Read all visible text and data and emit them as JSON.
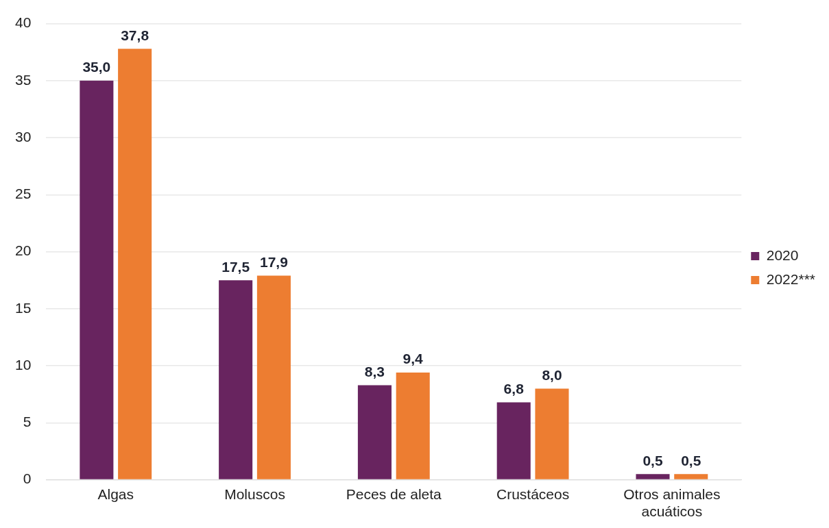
{
  "chart_data": {
    "type": "bar",
    "categories": [
      "Algas",
      "Moluscos",
      "Peces de aleta",
      "Crustáceos",
      "Otros animales acuáticos"
    ],
    "series": [
      {
        "name": "2020",
        "color": "#68245f",
        "values": [
          35.0,
          17.5,
          8.3,
          6.8,
          0.5
        ],
        "value_labels": [
          "35,0",
          "17,5",
          "8,3",
          "6,8",
          "0,5"
        ]
      },
      {
        "name": "2022***",
        "color": "#ed7d31",
        "values": [
          37.8,
          17.9,
          9.4,
          8.0,
          0.5
        ],
        "value_labels": [
          "37,8",
          "17,9",
          "9,4",
          "8,0",
          "0,5"
        ]
      }
    ],
    "ylim": [
      0,
      40
    ],
    "yticks": [
      0,
      5,
      10,
      15,
      20,
      25,
      30,
      35,
      40
    ],
    "grid": "y",
    "legend": "right"
  }
}
